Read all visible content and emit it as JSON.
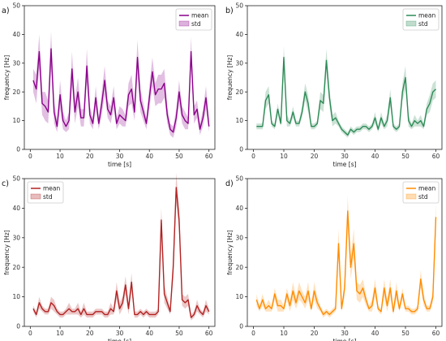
{
  "chart_data": [
    {
      "type": "line",
      "panel_label": "a)",
      "color": "#8B008B",
      "xlabel": "time [s]",
      "ylabel": "frequency [Hz]",
      "xlim": [
        -2,
        62
      ],
      "ylim": [
        0,
        50
      ],
      "xticks": [
        0,
        10,
        20,
        30,
        40,
        50,
        60
      ],
      "yticks": [
        0,
        10,
        20,
        30,
        40,
        50
      ],
      "legend": {
        "placement": "top-right",
        "entries": [
          "mean",
          "std"
        ]
      },
      "series": [
        {
          "name": "mean",
          "x": [
            1,
            2,
            3,
            4,
            5,
            6,
            7,
            8,
            9,
            10,
            11,
            12,
            13,
            14,
            15,
            16,
            17,
            18,
            19,
            20,
            21,
            22,
            23,
            24,
            25,
            26,
            27,
            28,
            29,
            30,
            31,
            32,
            33,
            34,
            35,
            36,
            37,
            38,
            39,
            40,
            41,
            42,
            43,
            44,
            45,
            46,
            47,
            48,
            49,
            50,
            51,
            52,
            53,
            54,
            55,
            56,
            57,
            58,
            59,
            60
          ],
          "y": [
            24,
            21,
            34,
            16,
            15,
            13,
            35,
            13,
            8,
            19,
            10,
            8,
            10,
            28,
            13,
            20,
            11,
            11,
            29,
            12,
            9,
            18,
            9,
            16,
            24,
            14,
            12,
            18,
            9,
            12,
            11,
            10,
            19,
            21,
            13,
            32,
            17,
            13,
            9,
            18,
            27,
            19,
            21,
            21,
            23,
            12,
            7,
            6,
            11,
            20,
            12,
            10,
            9,
            34,
            12,
            14,
            7,
            11,
            18,
            8
          ],
          "std": [
            4,
            5,
            6,
            4,
            5,
            4,
            6,
            4,
            2,
            5,
            3,
            2,
            3,
            6,
            4,
            5,
            3,
            3,
            6,
            3,
            2,
            4,
            2,
            4,
            5,
            3,
            3,
            4,
            2,
            3,
            3,
            2,
            4,
            5,
            3,
            6,
            4,
            3,
            2,
            4,
            5,
            4,
            5,
            5,
            5,
            3,
            2,
            2,
            3,
            4,
            3,
            3,
            2,
            5,
            3,
            3,
            2,
            3,
            4,
            2
          ]
        }
      ]
    },
    {
      "type": "line",
      "panel_label": "b)",
      "color": "#2E8B57",
      "xlabel": "time [s]",
      "ylabel": "frequency [Hz]",
      "xlim": [
        -2,
        62
      ],
      "ylim": [
        0,
        50
      ],
      "xticks": [
        0,
        10,
        20,
        30,
        40,
        50,
        60
      ],
      "yticks": [
        0,
        10,
        20,
        30,
        40,
        50
      ],
      "legend": {
        "placement": "top-right",
        "entries": [
          "mean",
          "std"
        ]
      },
      "series": [
        {
          "name": "mean",
          "x": [
            1,
            2,
            3,
            4,
            5,
            6,
            7,
            8,
            9,
            10,
            11,
            12,
            13,
            14,
            15,
            16,
            17,
            18,
            19,
            20,
            21,
            22,
            23,
            24,
            25,
            26,
            27,
            28,
            29,
            30,
            31,
            32,
            33,
            34,
            35,
            36,
            37,
            38,
            39,
            40,
            41,
            42,
            43,
            44,
            45,
            46,
            47,
            48,
            49,
            50,
            51,
            52,
            53,
            54,
            55,
            56,
            57,
            58,
            59,
            60
          ],
          "y": [
            8,
            8,
            8,
            17,
            19,
            9,
            8,
            14,
            9,
            32,
            10,
            9,
            13,
            9,
            9,
            13,
            20,
            16,
            8,
            8,
            9,
            17,
            16,
            31,
            18,
            10,
            11,
            9,
            7,
            6,
            5,
            7,
            6,
            7,
            7,
            8,
            8,
            7,
            8,
            11,
            7,
            11,
            8,
            10,
            18,
            8,
            7,
            8,
            20,
            25,
            10,
            8,
            10,
            9,
            10,
            8,
            14,
            16,
            20,
            21
          ],
          "std": [
            1,
            1,
            1,
            3,
            3,
            1,
            1,
            2,
            1,
            4,
            2,
            1,
            2,
            1,
            1,
            2,
            3,
            3,
            1,
            1,
            1,
            3,
            3,
            4,
            3,
            2,
            2,
            1,
            1,
            1,
            1,
            1,
            1,
            1,
            1,
            1,
            1,
            1,
            1,
            2,
            1,
            2,
            1,
            2,
            3,
            1,
            1,
            1,
            3,
            4,
            2,
            1,
            2,
            1,
            2,
            1,
            2,
            3,
            3,
            3
          ]
        }
      ]
    },
    {
      "type": "line",
      "panel_label": "c)",
      "color": "#B22222",
      "xlabel": "time [s]",
      "ylabel": "frequency [Hz]",
      "xlim": [
        -2,
        62
      ],
      "ylim": [
        0,
        50
      ],
      "xticks": [
        0,
        10,
        20,
        30,
        40,
        50,
        60
      ],
      "yticks": [
        0,
        10,
        20,
        30,
        40,
        50
      ],
      "legend": {
        "placement": "top-left",
        "entries": [
          "mean",
          "std"
        ]
      },
      "series": [
        {
          "name": "mean",
          "x": [
            1,
            2,
            3,
            4,
            5,
            6,
            7,
            8,
            9,
            10,
            11,
            12,
            13,
            14,
            15,
            16,
            17,
            18,
            19,
            20,
            21,
            22,
            23,
            24,
            25,
            26,
            27,
            28,
            29,
            30,
            31,
            32,
            33,
            34,
            35,
            36,
            37,
            38,
            39,
            40,
            41,
            42,
            43,
            44,
            45,
            46,
            47,
            48,
            49,
            50,
            51,
            52,
            53,
            54,
            55,
            56,
            57,
            58,
            59,
            60
          ],
          "y": [
            6,
            4,
            8,
            6,
            5,
            5,
            8,
            7,
            5,
            4,
            4,
            5,
            6,
            5,
            5,
            6,
            4,
            6,
            4,
            4,
            4,
            5,
            5,
            5,
            4,
            4,
            6,
            5,
            12,
            6,
            8,
            14,
            6,
            15,
            4,
            4,
            5,
            4,
            5,
            4,
            4,
            4,
            5,
            36,
            11,
            8,
            5,
            20,
            47,
            36,
            9,
            8,
            9,
            3,
            4,
            7,
            5,
            4,
            7,
            5
          ],
          "std": [
            1,
            1,
            2,
            1,
            1,
            1,
            2,
            2,
            1,
            1,
            1,
            1,
            2,
            1,
            1,
            2,
            1,
            2,
            1,
            1,
            1,
            1,
            1,
            1,
            1,
            1,
            2,
            1,
            3,
            2,
            2,
            3,
            2,
            3,
            1,
            1,
            1,
            1,
            1,
            1,
            1,
            1,
            1,
            4,
            3,
            2,
            1,
            4,
            5,
            4,
            2,
            2,
            2,
            1,
            1,
            2,
            1,
            1,
            2,
            1
          ]
        }
      ]
    },
    {
      "type": "line",
      "panel_label": "d)",
      "color": "#FF8C00",
      "xlabel": "time [s]",
      "ylabel": "frequency [Hz]",
      "xlim": [
        -2,
        62
      ],
      "ylim": [
        0,
        50
      ],
      "xticks": [
        0,
        10,
        20,
        30,
        40,
        50,
        60
      ],
      "yticks": [
        0,
        10,
        20,
        30,
        40,
        50
      ],
      "legend": {
        "placement": "top-right",
        "entries": [
          "mean",
          "std"
        ]
      },
      "series": [
        {
          "name": "mean",
          "x": [
            1,
            2,
            3,
            4,
            5,
            6,
            7,
            8,
            9,
            10,
            11,
            12,
            13,
            14,
            15,
            16,
            17,
            18,
            19,
            20,
            21,
            22,
            23,
            24,
            25,
            26,
            27,
            28,
            29,
            30,
            31,
            32,
            33,
            34,
            35,
            36,
            37,
            38,
            39,
            40,
            41,
            42,
            43,
            44,
            45,
            46,
            47,
            48,
            49,
            50,
            51,
            52,
            53,
            54,
            55,
            56,
            57,
            58,
            59,
            60
          ],
          "y": [
            9,
            6,
            9,
            6,
            7,
            6,
            11,
            7,
            7,
            6,
            11,
            7,
            12,
            8,
            12,
            10,
            8,
            12,
            6,
            12,
            8,
            6,
            4,
            5,
            4,
            5,
            6,
            28,
            6,
            13,
            39,
            20,
            28,
            12,
            11,
            13,
            9,
            6,
            7,
            13,
            6,
            5,
            13,
            7,
            13,
            5,
            12,
            6,
            11,
            6,
            6,
            5,
            5,
            6,
            16,
            9,
            6,
            6,
            10,
            37
          ],
          "std": [
            2,
            1,
            2,
            1,
            2,
            1,
            2,
            2,
            2,
            1,
            2,
            2,
            3,
            2,
            3,
            2,
            2,
            3,
            1,
            3,
            2,
            1,
            1,
            1,
            1,
            1,
            1,
            5,
            1,
            3,
            5,
            4,
            5,
            3,
            3,
            3,
            2,
            1,
            2,
            3,
            1,
            1,
            3,
            2,
            3,
            1,
            3,
            1,
            2,
            1,
            1,
            1,
            1,
            1,
            3,
            2,
            1,
            1,
            2,
            5
          ]
        }
      ]
    }
  ]
}
